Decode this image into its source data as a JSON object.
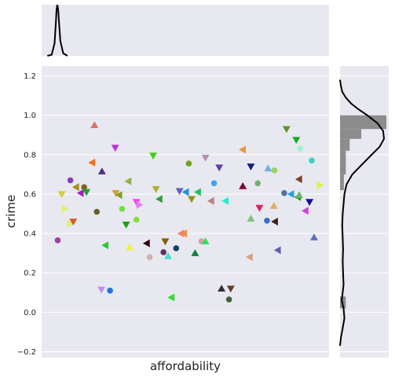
{
  "chart_data": {
    "type": "scatter",
    "xlabel": "affordability",
    "ylabel": "crime",
    "ylim": [
      -0.23,
      1.25
    ],
    "xlim": [
      0,
      1
    ],
    "yticks": [
      -0.2,
      0.0,
      0.2,
      0.4,
      0.6,
      0.8,
      1.0,
      1.2
    ],
    "ytick_labels": [
      "−0.2",
      "0.0",
      "0.2",
      "0.4",
      "0.6",
      "0.8",
      "1.0",
      "1.2"
    ],
    "grid": true,
    "legend": "none",
    "points": [
      {
        "x": 0.184,
        "y": 0.95,
        "marker": "tri-up",
        "color": "#d87070"
      },
      {
        "x": 0.256,
        "y": 0.835,
        "marker": "tri-down",
        "color": "#c030e0"
      },
      {
        "x": 0.852,
        "y": 0.93,
        "marker": "tri-down",
        "color": "#609030"
      },
      {
        "x": 0.886,
        "y": 0.875,
        "marker": "tri-down",
        "color": "#10b020"
      },
      {
        "x": 0.9,
        "y": 0.83,
        "marker": "circle",
        "color": "#a0f0d0"
      },
      {
        "x": 0.7,
        "y": 0.825,
        "marker": "tri-left",
        "color": "#f09040"
      },
      {
        "x": 0.388,
        "y": 0.795,
        "marker": "tri-down",
        "color": "#40d010"
      },
      {
        "x": 0.57,
        "y": 0.785,
        "marker": "tri-down",
        "color": "#b090b0"
      },
      {
        "x": 0.176,
        "y": 0.76,
        "marker": "tri-left",
        "color": "#f07020"
      },
      {
        "x": 0.512,
        "y": 0.755,
        "marker": "circle",
        "color": "#70a020"
      },
      {
        "x": 0.94,
        "y": 0.77,
        "marker": "circle",
        "color": "#40d0c0"
      },
      {
        "x": 0.618,
        "y": 0.735,
        "marker": "tri-down",
        "color": "#6040a0"
      },
      {
        "x": 0.728,
        "y": 0.74,
        "marker": "tri-down",
        "color": "#102080"
      },
      {
        "x": 0.788,
        "y": 0.73,
        "marker": "tri-up",
        "color": "#70b0e0"
      },
      {
        "x": 0.81,
        "y": 0.72,
        "marker": "circle",
        "color": "#a0d060"
      },
      {
        "x": 0.21,
        "y": 0.715,
        "marker": "tri-up",
        "color": "#503080"
      },
      {
        "x": 0.896,
        "y": 0.675,
        "marker": "tri-left",
        "color": "#804020"
      },
      {
        "x": 0.1,
        "y": 0.67,
        "marker": "circle",
        "color": "#8040c0"
      },
      {
        "x": 0.302,
        "y": 0.665,
        "marker": "tri-left",
        "color": "#90b040"
      },
      {
        "x": 0.6,
        "y": 0.655,
        "marker": "circle",
        "color": "#40a0f0"
      },
      {
        "x": 0.7,
        "y": 0.64,
        "marker": "tri-up",
        "color": "#800030"
      },
      {
        "x": 0.752,
        "y": 0.655,
        "marker": "circle",
        "color": "#70b070"
      },
      {
        "x": 0.07,
        "y": 0.6,
        "marker": "tri-down",
        "color": "#d0d040"
      },
      {
        "x": 0.12,
        "y": 0.635,
        "marker": "tri-left",
        "color": "#a09020"
      },
      {
        "x": 0.148,
        "y": 0.635,
        "marker": "circle",
        "color": "#806020"
      },
      {
        "x": 0.136,
        "y": 0.605,
        "marker": "tri-left",
        "color": "#a020c0"
      },
      {
        "x": 0.156,
        "y": 0.61,
        "marker": "tri-down",
        "color": "#20a030"
      },
      {
        "x": 0.258,
        "y": 0.605,
        "marker": "tri-down",
        "color": "#d0a040"
      },
      {
        "x": 0.27,
        "y": 0.595,
        "marker": "tri-left",
        "color": "#80a020"
      },
      {
        "x": 0.398,
        "y": 0.625,
        "marker": "tri-down",
        "color": "#b0b030"
      },
      {
        "x": 0.41,
        "y": 0.575,
        "marker": "tri-left",
        "color": "#30a030"
      },
      {
        "x": 0.48,
        "y": 0.615,
        "marker": "tri-down",
        "color": "#6060c0"
      },
      {
        "x": 0.502,
        "y": 0.61,
        "marker": "tri-left",
        "color": "#2090e0"
      },
      {
        "x": 0.544,
        "y": 0.61,
        "marker": "tri-left",
        "color": "#20c060"
      },
      {
        "x": 0.522,
        "y": 0.575,
        "marker": "tri-down",
        "color": "#909020"
      },
      {
        "x": 0.59,
        "y": 0.565,
        "marker": "tri-left",
        "color": "#c08080"
      },
      {
        "x": 0.64,
        "y": 0.565,
        "marker": "tri-left",
        "color": "#20f0d0"
      },
      {
        "x": 0.844,
        "y": 0.605,
        "marker": "circle",
        "color": "#5070a0"
      },
      {
        "x": 0.868,
        "y": 0.6,
        "marker": "tri-left",
        "color": "#20a0f0"
      },
      {
        "x": 0.892,
        "y": 0.585,
        "marker": "tri-left",
        "color": "#10a010"
      },
      {
        "x": 0.896,
        "y": 0.595,
        "marker": "tri-up",
        "color": "#70b070"
      },
      {
        "x": 0.932,
        "y": 0.56,
        "marker": "tri-down",
        "color": "#1010a0"
      },
      {
        "x": 0.968,
        "y": 0.645,
        "marker": "tri-right",
        "color": "#e0f040"
      },
      {
        "x": 0.08,
        "y": 0.525,
        "marker": "tri-right",
        "color": "#e0f070"
      },
      {
        "x": 0.098,
        "y": 0.45,
        "marker": "tri-right",
        "color": "#e0f070"
      },
      {
        "x": 0.11,
        "y": 0.46,
        "marker": "tri-down",
        "color": "#d06020"
      },
      {
        "x": 0.192,
        "y": 0.51,
        "marker": "circle",
        "color": "#606020"
      },
      {
        "x": 0.28,
        "y": 0.525,
        "marker": "circle",
        "color": "#70e040"
      },
      {
        "x": 0.294,
        "y": 0.445,
        "marker": "tri-down",
        "color": "#20a010"
      },
      {
        "x": 0.33,
        "y": 0.47,
        "marker": "circle",
        "color": "#80e040"
      },
      {
        "x": 0.33,
        "y": 0.56,
        "marker": "tri-down",
        "color": "#f040f0"
      },
      {
        "x": 0.34,
        "y": 0.545,
        "marker": "tri-right",
        "color": "#e080f0"
      },
      {
        "x": 0.758,
        "y": 0.53,
        "marker": "tri-down",
        "color": "#e02060"
      },
      {
        "x": 0.808,
        "y": 0.54,
        "marker": "tri-up",
        "color": "#e0b060"
      },
      {
        "x": 0.728,
        "y": 0.475,
        "marker": "tri-up",
        "color": "#80c080"
      },
      {
        "x": 0.784,
        "y": 0.465,
        "marker": "circle",
        "color": "#3070d0"
      },
      {
        "x": 0.812,
        "y": 0.46,
        "marker": "tri-left",
        "color": "#402010"
      },
      {
        "x": 0.918,
        "y": 0.515,
        "marker": "tri-left",
        "color": "#d040e0"
      },
      {
        "x": 0.056,
        "y": 0.365,
        "marker": "circle",
        "color": "#a040a0"
      },
      {
        "x": 0.222,
        "y": 0.34,
        "marker": "tri-left",
        "color": "#20d030"
      },
      {
        "x": 0.306,
        "y": 0.33,
        "marker": "tri-up",
        "color": "#f0f040"
      },
      {
        "x": 0.366,
        "y": 0.35,
        "marker": "tri-left",
        "color": "#300010"
      },
      {
        "x": 0.43,
        "y": 0.36,
        "marker": "tri-down",
        "color": "#806000"
      },
      {
        "x": 0.486,
        "y": 0.4,
        "marker": "tri-left",
        "color": "#e08080"
      },
      {
        "x": 0.496,
        "y": 0.4,
        "marker": "tri-left",
        "color": "#f09040"
      },
      {
        "x": 0.556,
        "y": 0.36,
        "marker": "circle",
        "color": "#d0a0a0"
      },
      {
        "x": 0.57,
        "y": 0.36,
        "marker": "tri-up",
        "color": "#30e060"
      },
      {
        "x": 0.376,
        "y": 0.28,
        "marker": "circle",
        "color": "#d0b0b0"
      },
      {
        "x": 0.424,
        "y": 0.305,
        "marker": "circle",
        "color": "#603060"
      },
      {
        "x": 0.44,
        "y": 0.285,
        "marker": "tri-up",
        "color": "#40e0d0"
      },
      {
        "x": 0.468,
        "y": 0.325,
        "marker": "circle",
        "color": "#104060"
      },
      {
        "x": 0.534,
        "y": 0.3,
        "marker": "tri-up",
        "color": "#108040"
      },
      {
        "x": 0.724,
        "y": 0.28,
        "marker": "tri-left",
        "color": "#d0a080"
      },
      {
        "x": 0.822,
        "y": 0.315,
        "marker": "tri-left",
        "color": "#6060b0"
      },
      {
        "x": 0.948,
        "y": 0.38,
        "marker": "tri-up",
        "color": "#6070c0"
      },
      {
        "x": 0.208,
        "y": 0.115,
        "marker": "tri-down",
        "color": "#c090f0"
      },
      {
        "x": 0.238,
        "y": 0.11,
        "marker": "circle",
        "color": "#2070e0"
      },
      {
        "x": 0.452,
        "y": 0.075,
        "marker": "tri-left",
        "color": "#30e030"
      },
      {
        "x": 0.626,
        "y": 0.12,
        "marker": "tri-up",
        "color": "#303030"
      },
      {
        "x": 0.658,
        "y": 0.12,
        "marker": "tri-down",
        "color": "#604020"
      },
      {
        "x": 0.652,
        "y": 0.065,
        "marker": "circle",
        "color": "#406040"
      }
    ],
    "marginal_x_density": {
      "x": [
        0.02,
        0.035,
        0.045,
        0.05,
        0.052,
        0.054,
        0.055,
        0.056,
        0.058,
        0.06,
        0.065,
        0.075,
        0.09
      ],
      "density": [
        0.0,
        0.02,
        0.25,
        0.7,
        0.92,
        1.0,
        1.0,
        0.98,
        0.9,
        0.7,
        0.3,
        0.05,
        0.0
      ]
    },
    "marginal_y_histogram": {
      "bin_edges": [
        0.02,
        0.08,
        0.62,
        0.65,
        0.7,
        0.76,
        0.82,
        0.88,
        0.93,
        1.0
      ],
      "counts": [
        3,
        0,
        2,
        2,
        3,
        3,
        5,
        11,
        24
      ],
      "color": "#8c8c8c"
    },
    "marginal_y_density": {
      "y": [
        -0.17,
        -0.13,
        -0.08,
        -0.03,
        0.02,
        0.06,
        0.1,
        0.14,
        0.2,
        0.26,
        0.32,
        0.38,
        0.44,
        0.5,
        0.55,
        0.6,
        0.65,
        0.7,
        0.75,
        0.8,
        0.84,
        0.88,
        0.92,
        0.96,
        1.0,
        1.03,
        1.06,
        1.09,
        1.12,
        1.15,
        1.18
      ],
      "density": [
        0.0,
        0.02,
        0.06,
        0.1,
        0.08,
        0.04,
        0.06,
        0.08,
        0.07,
        0.06,
        0.07,
        0.06,
        0.05,
        0.06,
        0.08,
        0.1,
        0.15,
        0.28,
        0.5,
        0.72,
        0.9,
        1.0,
        0.98,
        0.85,
        0.62,
        0.42,
        0.25,
        0.13,
        0.05,
        0.02,
        0.0
      ]
    }
  },
  "colors": {
    "panel_bg": "#e8e8f0",
    "grid": "#ffffff",
    "density_line": "#000000"
  }
}
